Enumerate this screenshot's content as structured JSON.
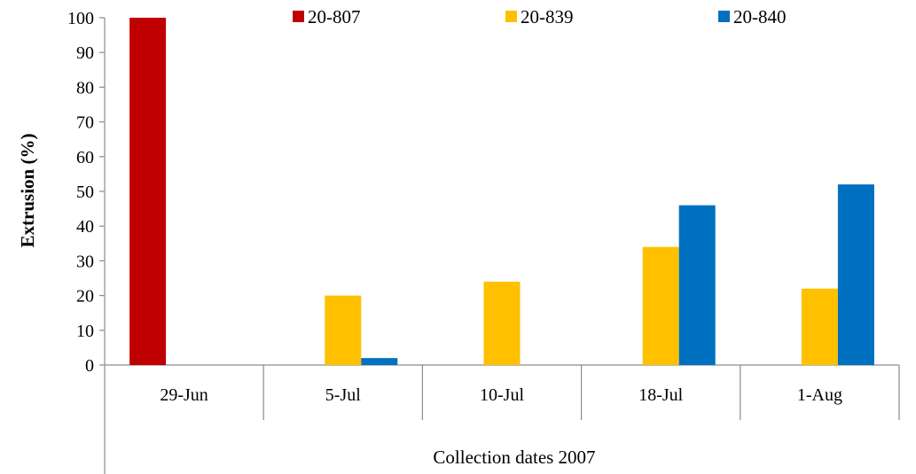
{
  "chart_data": {
    "type": "bar",
    "categories": [
      "29-Jun",
      "5-Jul",
      "10-Jul",
      "18-Jul",
      "1-Aug"
    ],
    "series": [
      {
        "name": "20-807",
        "color": "#c00000",
        "values": [
          100,
          0,
          0,
          0,
          0
        ]
      },
      {
        "name": "20-839",
        "color": "#ffc000",
        "values": [
          0,
          20,
          24,
          34,
          22
        ]
      },
      {
        "name": "20-840",
        "color": "#0070c0",
        "values": [
          0,
          2,
          0,
          46,
          52
        ]
      }
    ],
    "xlabel": "Collection dates 2007",
    "ylabel": "Extrusion (%)",
    "ylim": [
      0,
      100
    ],
    "yticks": [
      0,
      10,
      20,
      30,
      40,
      50,
      60,
      70,
      80,
      90,
      100
    ],
    "grid": false,
    "legend": "top"
  }
}
